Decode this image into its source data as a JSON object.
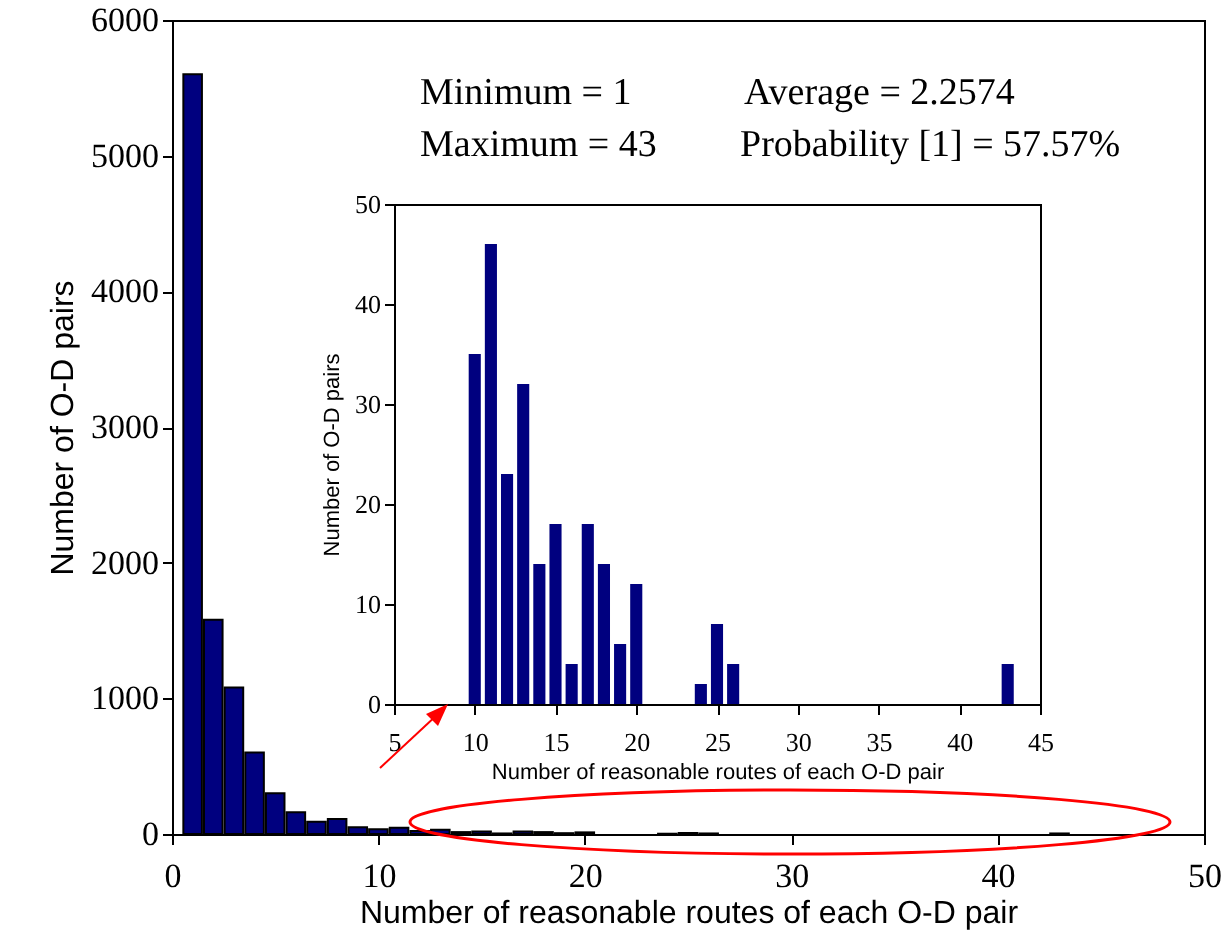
{
  "chart_data": [
    {
      "type": "bar",
      "xlabel": "Number of reasonable routes of each O-D pair",
      "ylabel": "Number of O-D pairs",
      "x": [
        1,
        2,
        3,
        4,
        5,
        6,
        7,
        8,
        9,
        10,
        11,
        12,
        13,
        14,
        15,
        16,
        17,
        18,
        19,
        20,
        24,
        25,
        26,
        43
      ],
      "series": [
        {
          "color": "#00007f",
          "values": [
            5600,
            1580,
            1080,
            600,
            300,
            160,
            90,
            110,
            50,
            35,
            46,
            23,
            32,
            14,
            18,
            4,
            18,
            14,
            6,
            12,
            2,
            8,
            4,
            4
          ]
        }
      ],
      "xlim": [
        0,
        50
      ],
      "xticks": [
        0,
        10,
        20,
        30,
        40,
        50
      ],
      "ylim": [
        0,
        6000
      ],
      "yticks": [
        0,
        1000,
        2000,
        3000,
        4000,
        5000,
        6000
      ],
      "grid": false,
      "annotations": [
        "Minimum = 1",
        "Average = 2.2574",
        "Maximum = 43",
        "Probability [1] = 57.57%"
      ]
    },
    {
      "type": "bar",
      "xlabel": "Number of reasonable routes of each O-D pair",
      "ylabel": "Number of O-D pairs",
      "x": [
        10,
        11,
        12,
        13,
        14,
        15,
        16,
        17,
        18,
        19,
        20,
        24,
        25,
        26,
        43
      ],
      "series": [
        {
          "color": "#00007f",
          "values": [
            35,
            46,
            23,
            32,
            14,
            18,
            4,
            18,
            14,
            6,
            12,
            2,
            8,
            4,
            4
          ]
        }
      ],
      "xlim": [
        5,
        45
      ],
      "xticks": [
        5,
        10,
        15,
        20,
        25,
        30,
        35,
        40,
        45
      ],
      "ylim": [
        0,
        50
      ],
      "yticks": [
        0,
        10,
        20,
        30,
        40,
        50
      ],
      "grid": false
    }
  ]
}
